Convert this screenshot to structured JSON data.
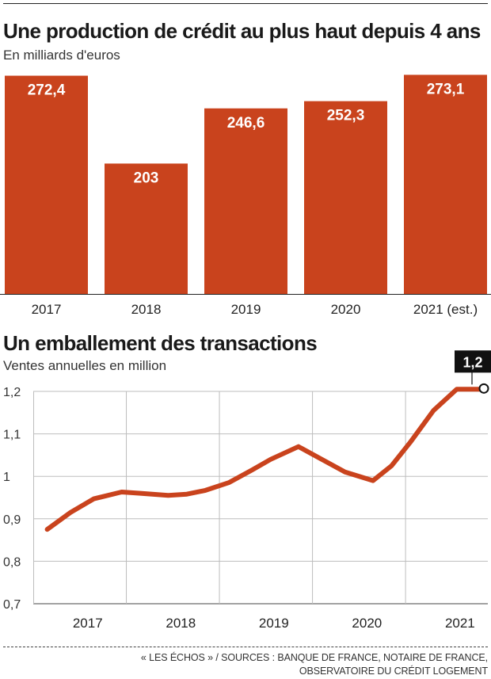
{
  "chart_data": [
    {
      "type": "bar",
      "title": "Une production de crédit au plus haut depuis 4 ans",
      "subtitle": "En milliards d'euros",
      "categories": [
        "2017",
        "2018",
        "2019",
        "2020",
        "2021 (est.)"
      ],
      "values": [
        272.4,
        203,
        246.6,
        252.3,
        273.1
      ],
      "value_labels": [
        "272,4",
        "203",
        "246,6",
        "252,3",
        "273,1"
      ],
      "color": "#c9431d",
      "ylim": [
        100,
        274
      ]
    },
    {
      "type": "line",
      "title": "Un emballement des transactions",
      "subtitle": "Ventes annuelles en million",
      "x": [
        2016.65,
        2016.9,
        2017.15,
        2017.45,
        2017.65,
        2017.95,
        2018.15,
        2018.35,
        2018.6,
        2018.85,
        2019.05,
        2019.35,
        2019.6,
        2019.85,
        2020.15,
        2020.35,
        2020.55,
        2020.8,
        2021.05,
        2021.35
      ],
      "y": [
        0.875,
        0.915,
        0.947,
        0.963,
        0.96,
        0.955,
        0.958,
        0.967,
        0.985,
        1.015,
        1.04,
        1.07,
        1.04,
        1.01,
        0.99,
        1.025,
        1.08,
        1.155,
        1.205,
        1.205
      ],
      "yticks": [
        0.7,
        0.8,
        0.9,
        1,
        1.1,
        1.2
      ],
      "ytick_labels": [
        "0,7",
        "0,8",
        "0,9",
        "1",
        "1,1",
        "1,2"
      ],
      "xticks": [
        2017,
        2018,
        2019,
        2020,
        2021
      ],
      "xtick_labels": [
        "2017",
        "2018",
        "2019",
        "2020",
        "2021"
      ],
      "ylim": [
        0.7,
        1.2
      ],
      "xlim": [
        2016.5,
        2021.35
      ],
      "grid": true,
      "color": "#c9431d",
      "end_label": "1,2"
    }
  ],
  "footer": {
    "line1": "« LES ÉCHOS » / SOURCES : BANQUE DE FRANCE, NOTAIRE DE FRANCE,",
    "line2": "OBSERVATOIRE DU CRÉDIT LOGEMENT"
  }
}
